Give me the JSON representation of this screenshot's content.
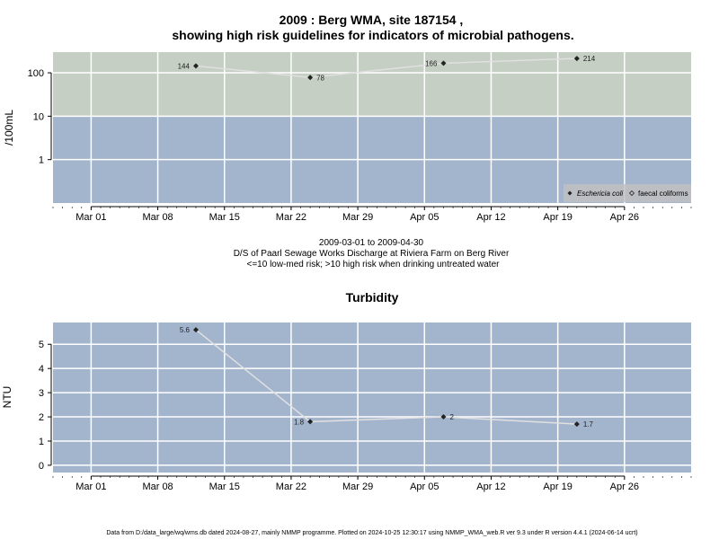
{
  "page": {
    "title_line1": "2009 : Berg WMA, site 187154 ,",
    "title_line2": "showing high risk guidelines for indicators of microbial pathogens.",
    "date_range": "2009-03-01 to 2009-04-30",
    "site_description": "D/S of Paarl Sewage Works Discharge at Riviera Farm on Berg River",
    "risk_note": "<=10 low-med risk; >10 high risk when drinking untreated water",
    "footer": "Data from D:/data_large/wq/wms.db dated 2024-08-27, mainly NMMP programme. Plotted on 2024-10-25 12:30:17 using NMMP_WMA_web.R ver 9.3 under R version 4.4.1 (2024-06-14 ucrt)"
  },
  "chart_data": [
    {
      "type": "line",
      "title": "",
      "xlabel": "",
      "ylabel": "/100mL",
      "y_scale": "log",
      "ylim": [
        0.1,
        300
      ],
      "yticks": [
        1,
        10,
        100
      ],
      "ytick_labels": [
        "1",
        "10",
        "100"
      ],
      "xlim": [
        "2009-02-25",
        "2009-05-03"
      ],
      "xticks": [
        "2009-03-01",
        "2009-03-08",
        "2009-03-15",
        "2009-03-22",
        "2009-03-29",
        "2009-04-05",
        "2009-04-12",
        "2009-04-19",
        "2009-04-26"
      ],
      "xtick_labels": [
        "Mar 01",
        "Mar 08",
        "Mar 15",
        "Mar 22",
        "Mar 29",
        "Apr 05",
        "Apr 12",
        "Apr 19",
        "Apr 26"
      ],
      "grid": true,
      "background_bands": [
        {
          "from": 10,
          "to": 300,
          "color": "#c5cfc3"
        },
        {
          "from": 0.1,
          "to": 10,
          "color": "#a3b4cd"
        }
      ],
      "series": [
        {
          "name": "Eschericia coli",
          "marker": "diamond-filled",
          "x": [
            "2009-03-12",
            "2009-03-24",
            "2009-04-07",
            "2009-04-21"
          ],
          "y": [
            144,
            78,
            166,
            214
          ],
          "labels": [
            "144",
            "78",
            "166",
            "214"
          ],
          "label_side": [
            "left",
            "right",
            "left",
            "right"
          ]
        }
      ],
      "legend": {
        "position": "bottom-right",
        "entries": [
          {
            "label": "Eschericia coli",
            "marker": "diamond-filled"
          },
          {
            "label": "faecal coliforms",
            "marker": "diamond-open"
          }
        ]
      },
      "colors": {
        "line": "#e0e0e0",
        "marker": "#222222",
        "grid": "#ffffff"
      }
    },
    {
      "type": "line",
      "title": "Turbidity",
      "xlabel": "",
      "ylabel": "NTU",
      "y_scale": "linear",
      "ylim": [
        -0.3,
        5.9
      ],
      "yticks": [
        0,
        1,
        2,
        3,
        4,
        5
      ],
      "ytick_labels": [
        "0",
        "1",
        "2",
        "3",
        "4",
        "5"
      ],
      "xlim": [
        "2009-02-25",
        "2009-05-03"
      ],
      "xticks": [
        "2009-03-01",
        "2009-03-08",
        "2009-03-15",
        "2009-03-22",
        "2009-03-29",
        "2009-04-05",
        "2009-04-12",
        "2009-04-19",
        "2009-04-26"
      ],
      "xtick_labels": [
        "Mar 01",
        "Mar 08",
        "Mar 15",
        "Mar 22",
        "Mar 29",
        "Apr 05",
        "Apr 12",
        "Apr 19",
        "Apr 26"
      ],
      "grid": true,
      "background_bands": [
        {
          "from": -0.3,
          "to": 5.9,
          "color": "#a3b4cd"
        }
      ],
      "series": [
        {
          "x": [
            "2009-03-12",
            "2009-03-24",
            "2009-04-07",
            "2009-04-21"
          ],
          "y": [
            5.6,
            1.8,
            2,
            1.7
          ],
          "labels": [
            "5.6",
            "1.8",
            "2",
            "1.7"
          ],
          "label_side": [
            "left",
            "left",
            "right",
            "right"
          ]
        }
      ],
      "colors": {
        "line": "#e0e0e0",
        "marker": "#222222",
        "grid": "#ffffff"
      }
    }
  ]
}
